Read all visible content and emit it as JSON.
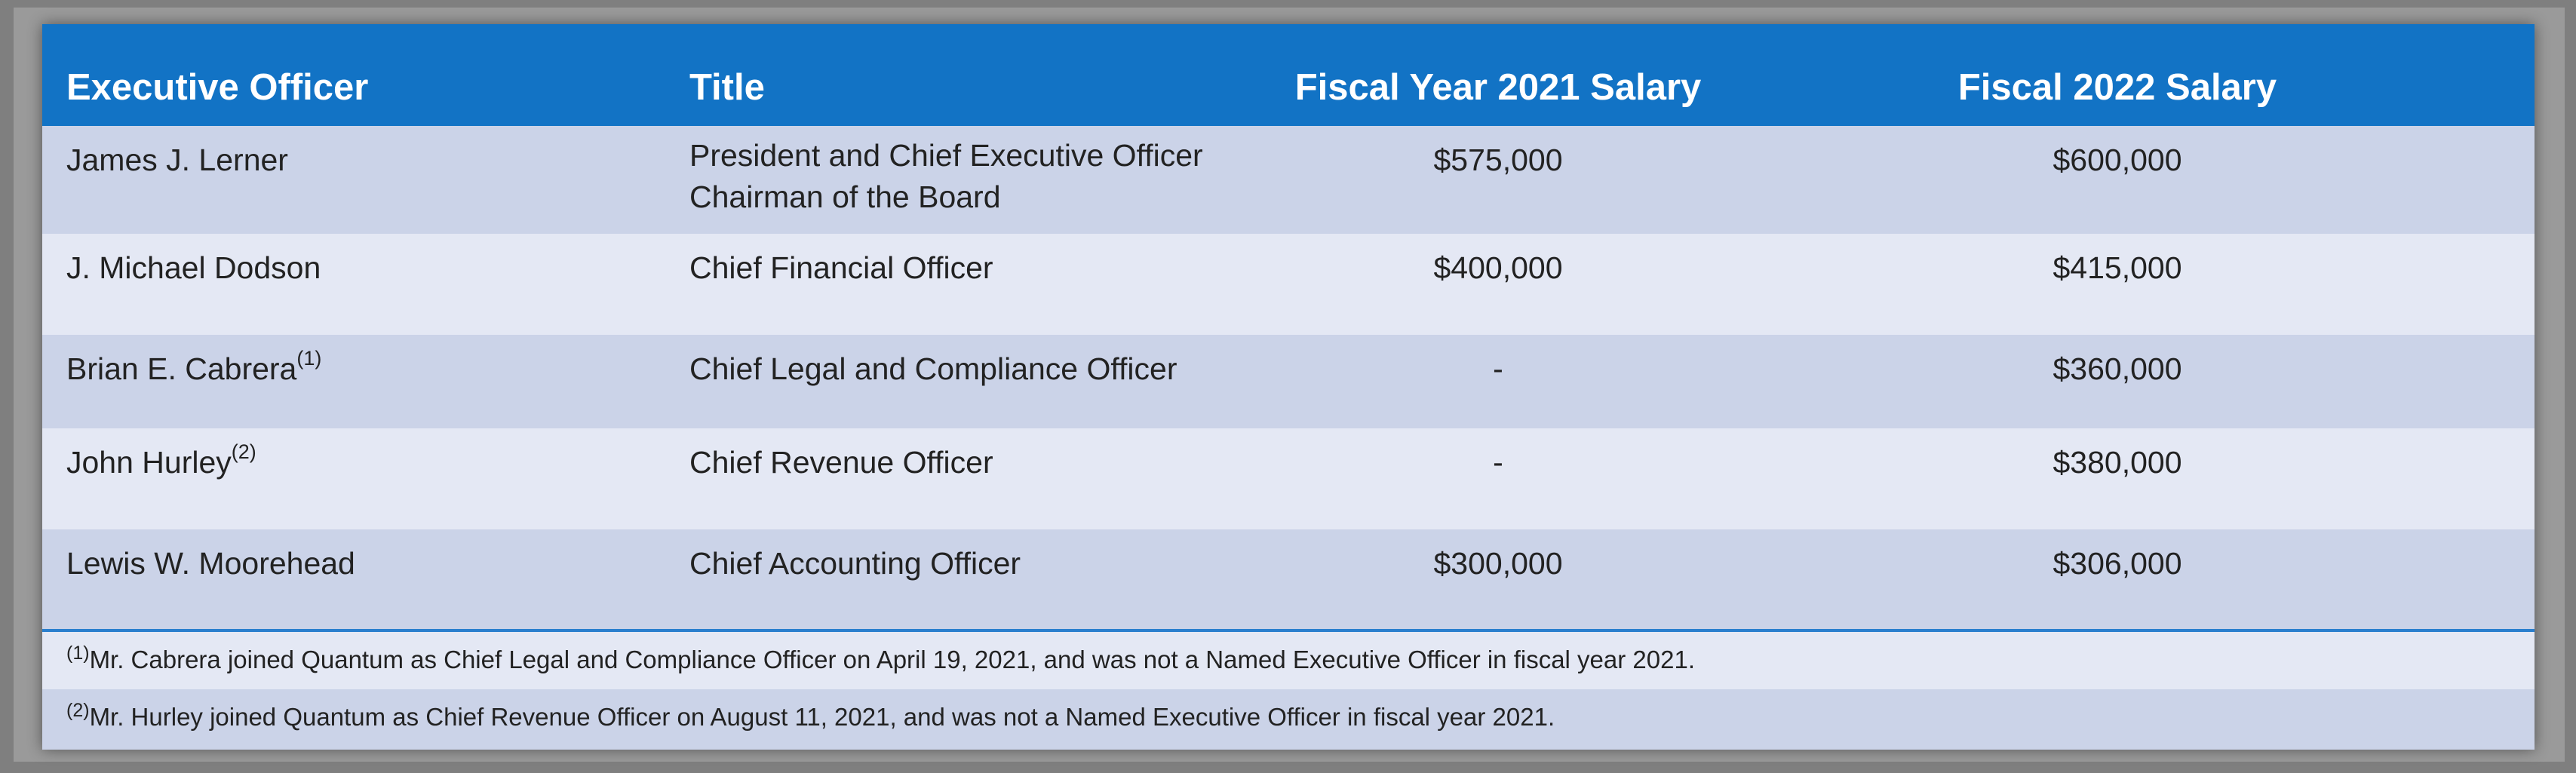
{
  "table": {
    "headers": {
      "officer": "Executive Officer",
      "title": "Title",
      "fy2021": "Fiscal Year 2021 Salary",
      "fy2022": "Fiscal 2022 Salary"
    },
    "rows": [
      {
        "officer": "James J. Lerner",
        "footnote": "",
        "title_line1": "President and Chief Executive Officer",
        "title_line2": "Chairman of the Board",
        "fy2021": "$575,000",
        "fy2022": "$600,000"
      },
      {
        "officer": "J. Michael Dodson",
        "footnote": "",
        "title_line1": "Chief Financial Officer",
        "title_line2": "",
        "fy2021": "$400,000",
        "fy2022": "$415,000"
      },
      {
        "officer": "Brian E. Cabrera",
        "footnote": "(1)",
        "title_line1": "Chief Legal and Compliance Officer",
        "title_line2": "",
        "fy2021": "-",
        "fy2022": "$360,000"
      },
      {
        "officer": "John Hurley",
        "footnote": "(2)",
        "title_line1": "Chief Revenue Officer",
        "title_line2": "",
        "fy2021": "-",
        "fy2022": "$380,000"
      },
      {
        "officer": "Lewis W. Moorehead",
        "footnote": "",
        "title_line1": "Chief Accounting Officer",
        "title_line2": "",
        "fy2021": "$300,000",
        "fy2022": "$306,000"
      }
    ],
    "notes": [
      {
        "marker": "(1)",
        "text": "Mr. Cabrera joined Quantum as Chief Legal and Compliance Officer on April 19, 2021, and was not a Named Executive Officer in fiscal year 2021."
      },
      {
        "marker": "(2)",
        "text": "Mr. Hurley joined Quantum as Chief Revenue Officer on August 11, 2021, and was not a Named Executive Officer in fiscal year 2021."
      }
    ]
  },
  "colors": {
    "header_bg": "#1273c5",
    "row_dark": "#cbd3e8",
    "row_light": "#e4e8f4",
    "divider": "#2a7fce"
  }
}
